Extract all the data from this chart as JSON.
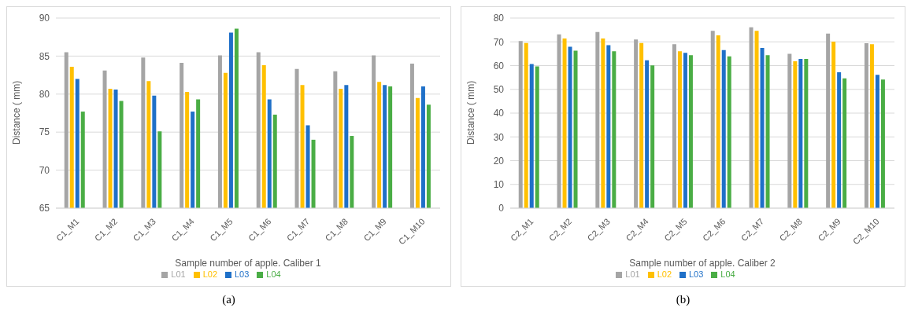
{
  "chart_data": [
    {
      "type": "bar",
      "categories": [
        "C1_M1",
        "C1_M2",
        "C1_M3",
        "C1_M4",
        "C1_M5",
        "C1_M6",
        "C1_M7",
        "C1_M8",
        "C1_M9",
        "C1_M10"
      ],
      "xlabel": "Sample number of apple. Caliber 1",
      "ylabel": "Distance ( mm)",
      "ylim": [
        65,
        90
      ],
      "yticks": [
        65,
        70,
        75,
        80,
        85,
        90
      ],
      "grid": "y",
      "legend": "bottom",
      "annotations": [
        "(a)"
      ],
      "series": [
        {
          "name": "L01",
          "color": "#a5a5a5",
          "values": [
            85.5,
            83.1,
            84.8,
            84.1,
            85.1,
            85.5,
            83.3,
            83.0,
            85.1,
            84.0
          ]
        },
        {
          "name": "L02",
          "color": "#ffc000",
          "values": [
            83.6,
            80.7,
            81.7,
            80.3,
            82.8,
            83.8,
            81.2,
            80.7,
            81.6,
            79.5
          ]
        },
        {
          "name": "L03",
          "color": "#1f70c8",
          "values": [
            82.0,
            80.6,
            79.8,
            77.7,
            88.1,
            79.3,
            75.9,
            81.2,
            81.2,
            81.0
          ]
        },
        {
          "name": "L04",
          "color": "#4aad45",
          "values": [
            77.7,
            79.1,
            75.1,
            79.3,
            88.6,
            77.3,
            74.0,
            74.5,
            81.0,
            78.6
          ]
        }
      ]
    },
    {
      "type": "bar",
      "categories": [
        "C2_M1",
        "C2_M2",
        "C2_M3",
        "C2_M4",
        "C2_M5",
        "C2_M6",
        "C2_M7",
        "C2_M8",
        "C2_M9",
        "C2_M10"
      ],
      "xlabel": "Sample number of apple. Caliber 2",
      "ylabel": "Distance ( mm)",
      "ylim": [
        0,
        80
      ],
      "yticks": [
        0,
        10,
        20,
        30,
        40,
        50,
        60,
        70,
        80
      ],
      "grid": "y",
      "legend": "bottom",
      "annotations": [
        "(b)"
      ],
      "series": [
        {
          "name": "L01",
          "color": "#a5a5a5",
          "values": [
            70.3,
            73.1,
            74.1,
            71.0,
            69.0,
            74.6,
            76.1,
            65.0,
            73.5,
            69.4
          ]
        },
        {
          "name": "L02",
          "color": "#ffc000",
          "values": [
            69.5,
            71.4,
            71.4,
            69.5,
            66.0,
            72.7,
            74.6,
            61.8,
            70.1,
            69.0
          ]
        },
        {
          "name": "L03",
          "color": "#1f70c8",
          "values": [
            60.7,
            67.9,
            68.6,
            62.2,
            65.4,
            66.5,
            67.4,
            62.8,
            57.2,
            56.1
          ]
        },
        {
          "name": "L04",
          "color": "#4aad45",
          "values": [
            59.7,
            66.3,
            66.0,
            60.1,
            64.4,
            63.9,
            64.4,
            62.8,
            54.6,
            54.1
          ]
        }
      ]
    }
  ]
}
